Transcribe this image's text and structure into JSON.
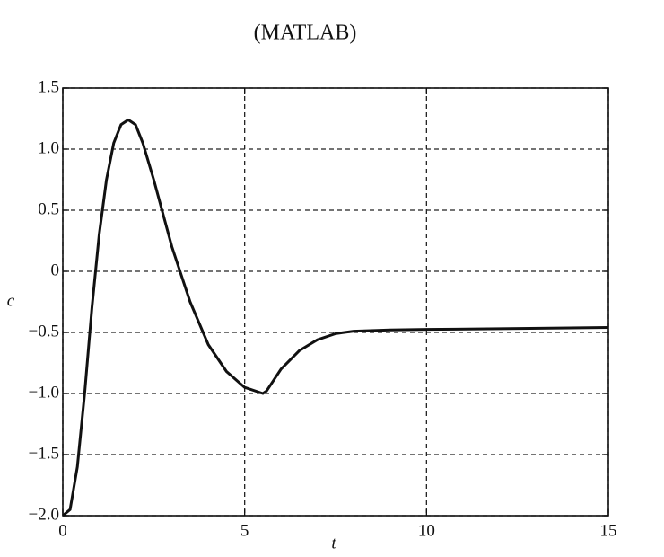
{
  "chart_data": {
    "type": "line",
    "title": "(MATLAB)",
    "xlabel": "t",
    "ylabel": "c",
    "x": [
      0,
      0.2,
      0.4,
      0.6,
      0.8,
      1.0,
      1.2,
      1.4,
      1.6,
      1.8,
      2.0,
      2.2,
      2.5,
      3.0,
      3.5,
      4.0,
      4.5,
      5.0,
      5.5,
      5.6,
      6.0,
      6.5,
      7.0,
      7.5,
      8.0,
      9.0,
      10.0,
      12.0,
      15.0
    ],
    "series": [
      {
        "color": "#111111",
        "values": [
          -2.0,
          -1.95,
          -1.6,
          -1.0,
          -0.3,
          0.3,
          0.75,
          1.05,
          1.2,
          1.24,
          1.2,
          1.05,
          0.75,
          0.2,
          -0.25,
          -0.6,
          -0.82,
          -0.95,
          -1.0,
          -0.98,
          -0.8,
          -0.65,
          -0.56,
          -0.51,
          -0.49,
          -0.48,
          -0.475,
          -0.47,
          -0.46
        ]
      }
    ],
    "xlim": [
      0,
      15
    ],
    "ylim": [
      -2.0,
      1.5
    ],
    "xticks": [
      0,
      5,
      10,
      15
    ],
    "yticks": [
      {
        "value": -2.0,
        "label": "−2.0"
      },
      {
        "value": -1.5,
        "label": "−1.5"
      },
      {
        "value": -1.0,
        "label": "−1.0"
      },
      {
        "value": -0.5,
        "label": "−0.5"
      },
      0,
      0.5,
      {
        "value": 1.0,
        "label": "1.0"
      },
      1.5
    ],
    "grid": true
  }
}
